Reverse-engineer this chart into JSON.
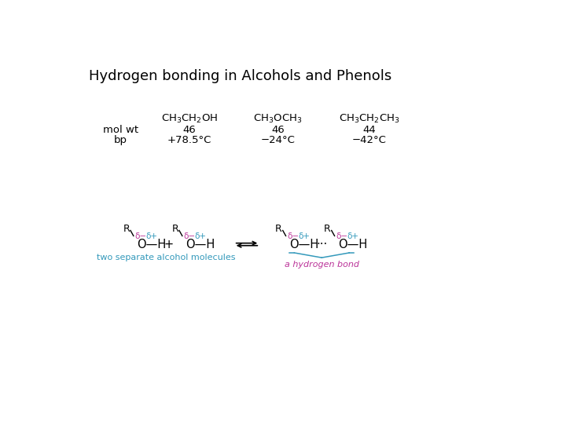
{
  "title": "Hydrogen bonding in Alcohols and Phenols",
  "title_fontsize": 13,
  "bg_color": "#ffffff",
  "text_color": "#000000",
  "cyan_color": "#3399bb",
  "magenta_color": "#bb3399",
  "table": {
    "col2_molwt": "46",
    "col3_molwt": "46",
    "col4_molwt": "44",
    "col2_bp": "+78.5°C",
    "col3_bp": "−24°C",
    "col4_bp": "−42°C",
    "row1_label": "mol wt",
    "row2_label": "bp"
  },
  "diagram": {
    "delta_minus": "δ−",
    "delta_plus": "δ+",
    "label_left": "two separate alcohol molecules",
    "label_right": "a hydrogen bond"
  }
}
